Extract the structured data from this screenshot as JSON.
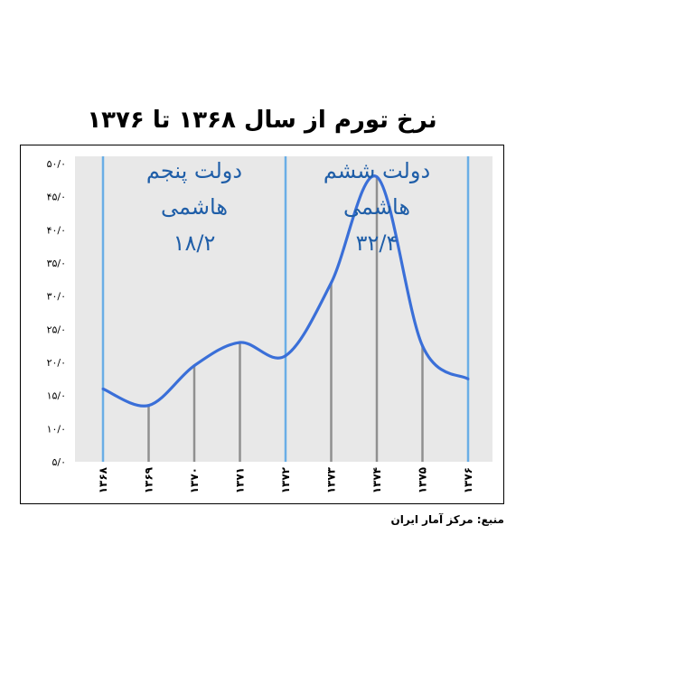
{
  "title": "نرخ تورم از سال ۱۳۶۸ تا ۱۳۷۶",
  "source": "منبع: مرکز آمار ایران",
  "colors": {
    "plot_background": "#e8e8e8",
    "curve": "#3a6fd8",
    "divider": "#6aaee6",
    "bar": "#909090",
    "annotation_text": "#1f5ea8"
  },
  "chart_data": {
    "type": "line",
    "title": "نرخ تورم از سال ۱۳۶۸ تا ۱۳۷۶",
    "xlabel": "",
    "ylabel": "",
    "categories": [
      "۱۳۶۸",
      "۱۳۶۹",
      "۱۳۷۰",
      "۱۳۷۱",
      "۱۳۷۲",
      "۱۳۷۳",
      "۱۳۷۴",
      "۱۳۷۵",
      "۱۳۷۶"
    ],
    "values": [
      16.0,
      13.5,
      19.5,
      23.0,
      21.0,
      32.0,
      48.0,
      22.5,
      17.5
    ],
    "ylim": [
      5,
      50
    ],
    "yticks": [
      "۵/۰",
      "۱۰/۰",
      "۱۵/۰",
      "۲۰/۰",
      "۲۵/۰",
      "۳۰/۰",
      "۳۵/۰",
      "۴۰/۰",
      "۴۵/۰",
      "۵۰/۰"
    ],
    "ytick_values": [
      5,
      10,
      15,
      20,
      25,
      30,
      35,
      40,
      45,
      50
    ],
    "grid": false,
    "legend": "none",
    "period_dividers": [
      1368,
      1372,
      1376
    ],
    "annotations": [
      {
        "lines": [
          "دولت پنجم",
          "هاشمی",
          "۱۸/۲"
        ],
        "period": [
          1368,
          1372
        ]
      },
      {
        "lines": [
          "دولت ششم",
          "هاشمی",
          "۳۲/۴"
        ],
        "period": [
          1372,
          1376
        ]
      }
    ]
  }
}
